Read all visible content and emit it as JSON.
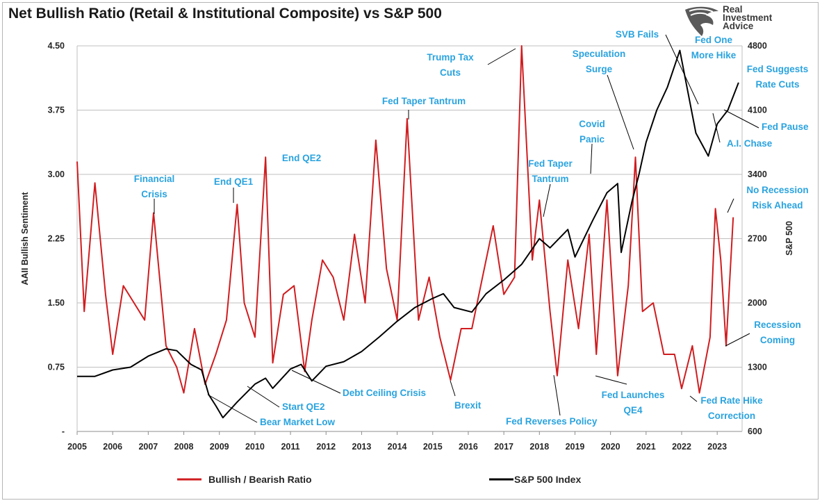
{
  "title": "Net Bullish Ratio (Retail & Institutional Composite) vs S&P 500",
  "logo": {
    "line1": "Real",
    "line2": "Investment",
    "line3": "Advice",
    "icon": "eagle-head-icon"
  },
  "colors": {
    "ratio": "#d01c1f",
    "sp500": "#000000",
    "annotation": "#2aa3df",
    "grid": "#bfbfbf"
  },
  "chart_data": {
    "type": "line",
    "title": "Net Bullish Ratio (Retail & Institutional Composite) vs S&P 500",
    "ylabel": "AAII Bullish Sentiment",
    "y2label": "S&P 500",
    "xlim": [
      2005,
      2023.7
    ],
    "ylim": [
      0,
      4.5
    ],
    "y2lim": [
      600,
      4800
    ],
    "x_ticks": [
      "2005",
      "2006",
      "2007",
      "2008",
      "2009",
      "2010",
      "2011",
      "2012",
      "2013",
      "2014",
      "2015",
      "2016",
      "2017",
      "2018",
      "2019",
      "2020",
      "2021",
      "2022",
      "2023"
    ],
    "y_ticks": [
      "-",
      "0.75",
      "1.50",
      "2.25",
      "3.00",
      "3.75",
      "4.50"
    ],
    "y2_ticks": [
      "600",
      "1300",
      "2000",
      "2700",
      "3400",
      "4100",
      "4800"
    ],
    "grid": true,
    "legend_position": "bottom",
    "series": [
      {
        "name": "Bullish / Bearish Ratio",
        "axis": "left",
        "x": [
          2005.0,
          2005.2,
          2005.5,
          2005.8,
          2006.0,
          2006.3,
          2006.6,
          2006.9,
          2007.15,
          2007.5,
          2007.8,
          2008.0,
          2008.3,
          2008.6,
          2008.9,
          2009.2,
          2009.5,
          2009.7,
          2010.0,
          2010.3,
          2010.5,
          2010.8,
          2011.1,
          2011.4,
          2011.6,
          2011.9,
          2012.2,
          2012.5,
          2012.8,
          2013.1,
          2013.4,
          2013.7,
          2014.0,
          2014.28,
          2014.6,
          2014.9,
          2015.2,
          2015.5,
          2015.8,
          2016.1,
          2016.4,
          2016.7,
          2017.0,
          2017.3,
          2017.5,
          2017.8,
          2018.0,
          2018.3,
          2018.5,
          2018.8,
          2019.1,
          2019.4,
          2019.6,
          2019.9,
          2020.2,
          2020.5,
          2020.7,
          2020.9,
          2021.2,
          2021.5,
          2021.8,
          2022.0,
          2022.3,
          2022.5,
          2022.8,
          2022.95,
          2023.1,
          2023.25,
          2023.45
        ],
        "y": [
          3.15,
          1.4,
          2.9,
          1.6,
          0.9,
          1.7,
          1.5,
          1.3,
          2.55,
          1.0,
          0.75,
          0.45,
          1.2,
          0.55,
          0.9,
          1.3,
          2.65,
          1.5,
          1.1,
          3.2,
          0.8,
          1.6,
          1.7,
          0.7,
          1.3,
          2.0,
          1.8,
          1.3,
          2.3,
          1.5,
          3.4,
          1.9,
          1.3,
          3.65,
          1.3,
          1.8,
          1.1,
          0.6,
          1.2,
          1.2,
          1.8,
          2.4,
          1.6,
          1.8,
          4.5,
          2.0,
          2.7,
          1.4,
          0.65,
          2.0,
          1.2,
          2.3,
          0.9,
          2.7,
          0.65,
          1.7,
          3.2,
          1.4,
          1.5,
          0.9,
          0.9,
          0.5,
          1.0,
          0.45,
          1.1,
          2.6,
          2.0,
          1.0,
          2.5
        ]
      },
      {
        "name": "S&P 500 Index",
        "axis": "right",
        "x": [
          2005.0,
          2005.5,
          2006.0,
          2006.5,
          2007.0,
          2007.5,
          2007.8,
          2008.2,
          2008.5,
          2008.7,
          2008.9,
          2009.1,
          2009.5,
          2010.0,
          2010.3,
          2010.5,
          2011.0,
          2011.3,
          2011.6,
          2011.8,
          2012.0,
          2012.5,
          2013.0,
          2013.5,
          2014.0,
          2014.5,
          2015.0,
          2015.3,
          2015.6,
          2016.1,
          2016.5,
          2017.0,
          2017.5,
          2018.0,
          2018.3,
          2018.8,
          2019.0,
          2019.5,
          2019.9,
          2020.2,
          2020.3,
          2020.6,
          2020.8,
          2021.0,
          2021.3,
          2021.6,
          2021.95,
          2022.1,
          2022.4,
          2022.75,
          2023.0,
          2023.3,
          2023.6
        ],
        "y": [
          1200,
          1200,
          1270,
          1300,
          1420,
          1500,
          1480,
          1330,
          1270,
          1000,
          880,
          750,
          920,
          1115,
          1180,
          1070,
          1280,
          1330,
          1150,
          1230,
          1310,
          1360,
          1470,
          1630,
          1800,
          1950,
          2050,
          2100,
          1950,
          1900,
          2100,
          2250,
          2420,
          2700,
          2600,
          2800,
          2500,
          2900,
          3200,
          3300,
          2550,
          3100,
          3400,
          3750,
          4100,
          4350,
          4750,
          4450,
          3850,
          3600,
          3950,
          4100,
          4400
        ]
      }
    ],
    "annotations": [
      "Financial Crisis",
      "End QE1",
      "End QE2",
      "Fed Taper Tantrum",
      "Trump Tax Cuts",
      "Fed Taper Tantrum",
      "Covid Panic",
      "Speculation Surge",
      "SVB Fails",
      "Fed One More Hike",
      "Fed Suggests Rate Cuts",
      "Fed Pause",
      "A.I. Chase",
      "No Recession Risk Ahead",
      "Recession Coming",
      "Bear Market Low",
      "Start QE2",
      "Debt Ceiling Crisis",
      "Brexit",
      "Fed Reverses Policy",
      "Fed Launches QE4",
      "Fed Rate Hike Correction"
    ]
  }
}
